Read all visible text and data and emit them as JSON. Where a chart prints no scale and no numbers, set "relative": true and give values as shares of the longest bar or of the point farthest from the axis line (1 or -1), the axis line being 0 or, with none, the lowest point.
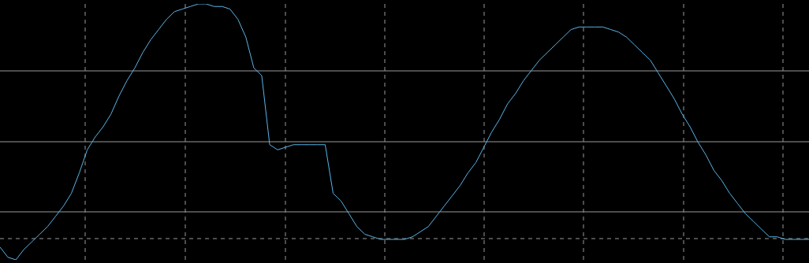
{
  "chart_data": {
    "type": "line",
    "relative": true,
    "grid": true,
    "legend": false,
    "marker": "none",
    "line_style": "solid",
    "categories": [
      null,
      null,
      null,
      null,
      null,
      null,
      null,
      null,
      null,
      null,
      null,
      null,
      null,
      null,
      null,
      null,
      null,
      null,
      null,
      null,
      null,
      null,
      null,
      null,
      null,
      null,
      null,
      null,
      null,
      null,
      null,
      null,
      null,
      null,
      null,
      null,
      null,
      null,
      null,
      null,
      null,
      null,
      null,
      null,
      null,
      null,
      null,
      null,
      null,
      null,
      null,
      null,
      null,
      null,
      null,
      null,
      null,
      null,
      null,
      null,
      null,
      null,
      null,
      null,
      null,
      null,
      null,
      null,
      null,
      null,
      null,
      null,
      null,
      null,
      null,
      null,
      null,
      null,
      null,
      null,
      null,
      null,
      null,
      null,
      null,
      null,
      null,
      null,
      null,
      null,
      null,
      null,
      null,
      null,
      null,
      null,
      null,
      null,
      null,
      null,
      null,
      null,
      null
    ],
    "series": [
      {
        "color": "#5ab4e6",
        "values": [
          0.05,
          0.01,
          0,
          0.04,
          0.07,
          0.1,
          0.13,
          0.17,
          0.21,
          0.26,
          0.34,
          0.43,
          0.48,
          0.52,
          0.57,
          0.64,
          0.7,
          0.75,
          0.81,
          0.86,
          0.9,
          0.94,
          0.97,
          0.98,
          0.99,
          1,
          1,
          0.99,
          0.99,
          0.98,
          0.94,
          0.87,
          0.75,
          0.72,
          0.45,
          0.43,
          0.44,
          0.45,
          0.45,
          0.45,
          0.45,
          0.45,
          0.26,
          0.23,
          0.18,
          0.13,
          0.1,
          0.09,
          0.08,
          0.08,
          0.08,
          0.08,
          0.09,
          0.11,
          0.13,
          0.17,
          0.21,
          0.25,
          0.29,
          0.34,
          0.38,
          0.44,
          0.5,
          0.55,
          0.61,
          0.65,
          0.7,
          0.74,
          0.78,
          0.81,
          0.84,
          0.87,
          0.9,
          0.91,
          0.91,
          0.91,
          0.91,
          0.9,
          0.89,
          0.87,
          0.84,
          0.81,
          0.78,
          0.73,
          0.68,
          0.63,
          0.57,
          0.52,
          0.46,
          0.41,
          0.35,
          0.31,
          0.26,
          0.22,
          0.18,
          0.15,
          0.12,
          0.09,
          0.09,
          0.08,
          0.08,
          0.08,
          0.08
        ]
      }
    ]
  }
}
